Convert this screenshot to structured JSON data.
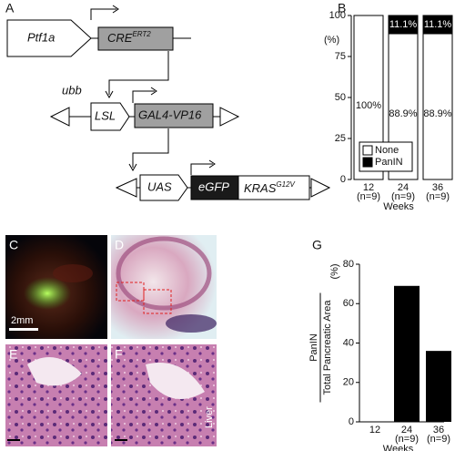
{
  "panels": [
    "A",
    "B",
    "C",
    "D",
    "E",
    "F",
    "G"
  ],
  "diagram": {
    "ptf1a": "Ptf1a",
    "cre": {
      "name": "CRE",
      "sup": "ERT2"
    },
    "ubb": "ubb",
    "lsl": "LSL",
    "gal4": "GAL4-VP16",
    "uas": "UAS",
    "egfp": "eGFP",
    "kras": {
      "name": "KRAS",
      "sup": "G12V"
    }
  },
  "photos": {
    "scale_bar": "2mm",
    "liver": "Liver"
  },
  "chart_data": [
    {
      "type": "stacked-bar",
      "ylabel": "(%)",
      "xlabel": "Weeks",
      "categories": [
        "12",
        "24",
        "36"
      ],
      "category_notes": [
        "(n=9)",
        "(n=9)",
        "(n=9)"
      ],
      "ylim": [
        0,
        100
      ],
      "yticks": [
        0,
        25,
        50,
        75,
        100
      ],
      "legend": "lower-left",
      "series": [
        {
          "name": "None",
          "color": "#ffffff",
          "values": [
            100,
            88.9,
            88.9
          ],
          "value_labels": [
            "100%",
            "88.9%",
            "88.9%"
          ]
        },
        {
          "name": "PanIN",
          "color": "#000000",
          "values": [
            0,
            11.1,
            11.1
          ],
          "value_labels": [
            null,
            "11.1%",
            "11.1%"
          ]
        }
      ]
    },
    {
      "type": "bar",
      "ylabel": {
        "numerator": "PanIN",
        "denominator": "Total Pancreatic Area",
        "unit": "(%)"
      },
      "xlabel": "Weeks",
      "categories": [
        "12",
        "24",
        "36"
      ],
      "category_notes": [
        null,
        "(n=9)",
        "(n=9)"
      ],
      "values": [
        0,
        69,
        36
      ],
      "color": "#000000",
      "ylim": [
        0,
        80
      ],
      "yticks": [
        0,
        20,
        40,
        60,
        80
      ]
    }
  ]
}
